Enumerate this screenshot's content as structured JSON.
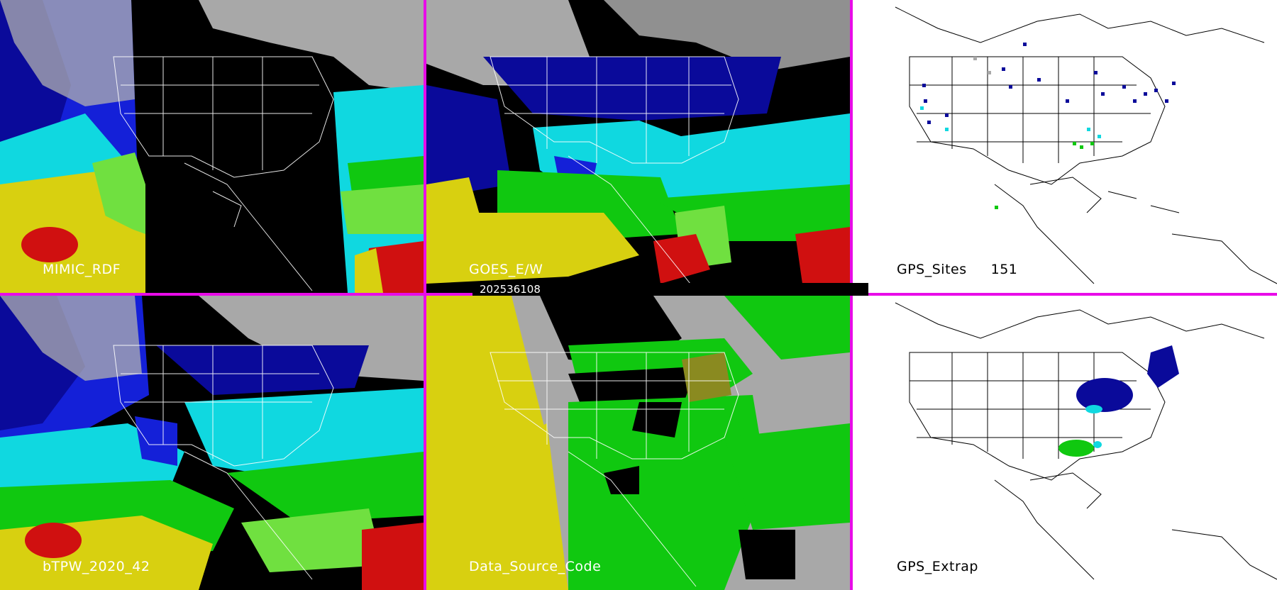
{
  "panels": {
    "mimic": {
      "label": "MIMIC_RDF"
    },
    "goes": {
      "label": "GOES_E/W"
    },
    "gps_sites": {
      "label": "GPS_Sites",
      "count": "151"
    },
    "btpw": {
      "label": "bTPW_2020_42"
    },
    "source": {
      "label": "Data_Source_Code"
    },
    "gps_extrap": {
      "label": "GPS_Extrap"
    }
  },
  "timestamp": "202536108",
  "colors": {
    "divider": "#e80ce8",
    "navy": "#0a0a9a",
    "blue": "#1420d8",
    "cyan": "#10d8e0",
    "green": "#10c810",
    "lime": "#70e040",
    "yellow": "#d8d010",
    "red": "#d01010",
    "gray": "#a8a8a8",
    "olive": "#8a8a20"
  }
}
